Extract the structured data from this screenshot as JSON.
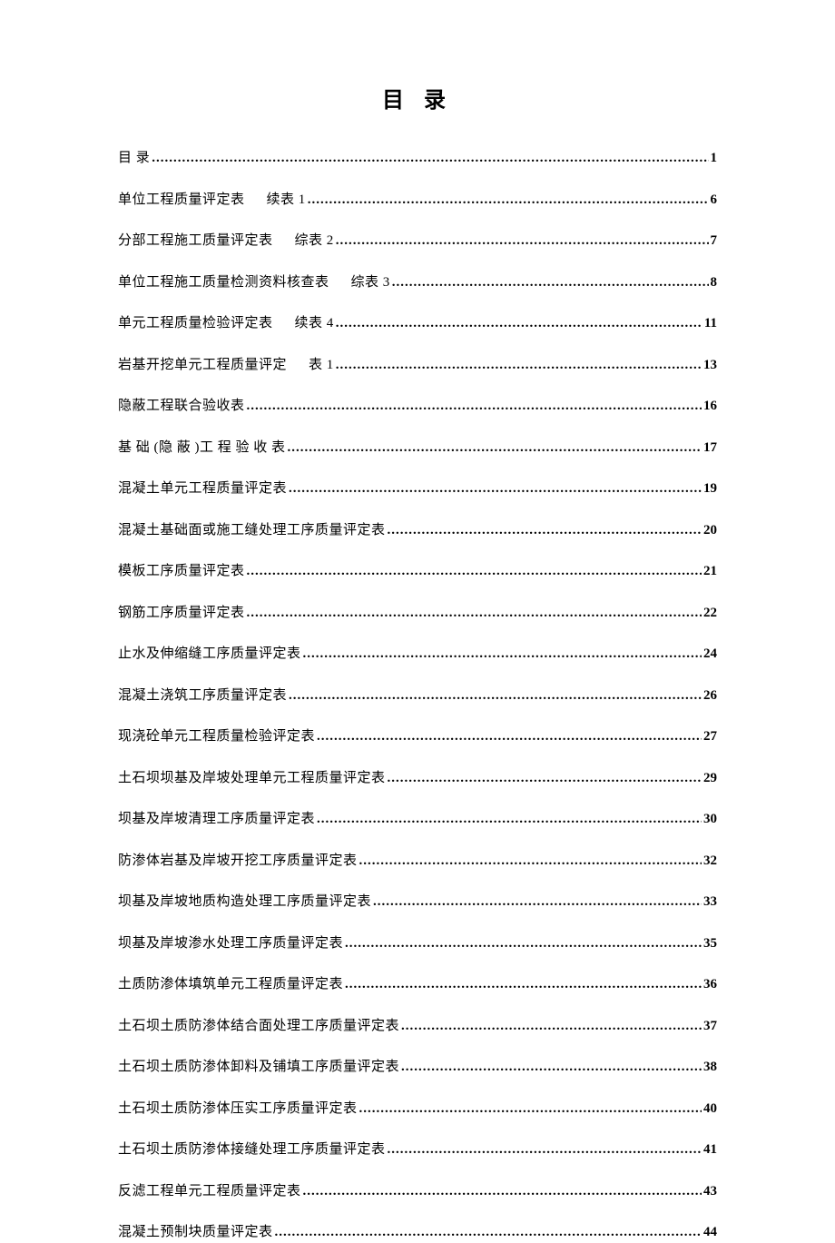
{
  "title": "目 录",
  "entries": [
    {
      "label": "目 录",
      "label2": "",
      "page": "1"
    },
    {
      "label": "单位工程质量评定表",
      "label2": "续表 1",
      "page": "6"
    },
    {
      "label": "分部工程施工质量评定表",
      "label2": "综表 2",
      "page": "7"
    },
    {
      "label": "单位工程施工质量检测资料核查表",
      "label2": "综表 3",
      "page": "8"
    },
    {
      "label": "单元工程质量检验评定表",
      "label2": "续表 4",
      "page": "11"
    },
    {
      "label": "岩基开挖单元工程质量评定",
      "label2": "表 1",
      "page": "13"
    },
    {
      "label": "隐蔽工程联合验收表",
      "label2": "",
      "page": "16"
    },
    {
      "label": "基 础 (隐 蔽 )工 程 验 收 表",
      "label2": "",
      "page": "17"
    },
    {
      "label": "混凝土单元工程质量评定表",
      "label2": "",
      "page": "19"
    },
    {
      "label": "混凝土基础面或施工缝处理工序质量评定表",
      "label2": "",
      "page": "20"
    },
    {
      "label": "模板工序质量评定表",
      "label2": "",
      "page": "21"
    },
    {
      "label": "钢筋工序质量评定表",
      "label2": "",
      "page": "22"
    },
    {
      "label": "止水及伸缩缝工序质量评定表",
      "label2": "",
      "page": "24"
    },
    {
      "label": "混凝土浇筑工序质量评定表",
      "label2": "",
      "page": "26"
    },
    {
      "label": "现浇砼单元工程质量检验评定表",
      "label2": "",
      "page": "27"
    },
    {
      "label": "土石坝坝基及岸坡处理单元工程质量评定表",
      "label2": "",
      "page": "29"
    },
    {
      "label": "坝基及岸坡清理工序质量评定表",
      "label2": "",
      "page": "30"
    },
    {
      "label": "防渗体岩基及岸坡开挖工序质量评定表",
      "label2": "",
      "page": "32"
    },
    {
      "label": "坝基及岸坡地质构造处理工序质量评定表",
      "label2": "",
      "page": "33"
    },
    {
      "label": "坝基及岸坡渗水处理工序质量评定表",
      "label2": "",
      "page": "35"
    },
    {
      "label": "土质防渗体填筑单元工程质量评定表",
      "label2": "",
      "page": "36"
    },
    {
      "label": "土石坝土质防渗体结合面处理工序质量评定表",
      "label2": "",
      "page": "37"
    },
    {
      "label": "土石坝土质防渗体卸料及铺填工序质量评定表",
      "label2": "",
      "page": "38"
    },
    {
      "label": "土石坝土质防渗体压实工序质量评定表",
      "label2": "",
      "page": "40"
    },
    {
      "label": "土石坝土质防渗体接缝处理工序质量评定表",
      "label2": "",
      "page": "41"
    },
    {
      "label": "反滤工程单元工程质量评定表",
      "label2": "",
      "page": "43"
    },
    {
      "label": "混凝土预制块质量评定表",
      "label2": "",
      "page": "44"
    }
  ]
}
